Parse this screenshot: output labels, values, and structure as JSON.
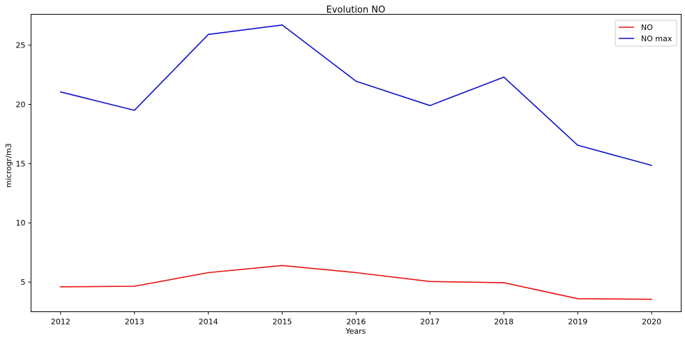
{
  "chart_data": {
    "type": "line",
    "title": "Evolution NO",
    "xlabel": "Years",
    "ylabel": "microgr/m3",
    "categories": [
      "2012",
      "2013",
      "2014",
      "2015",
      "2016",
      "2017",
      "2018",
      "2019",
      "2020"
    ],
    "x": [
      2012,
      2013,
      2014,
      2015,
      2016,
      2017,
      2018,
      2019,
      2020
    ],
    "xlim": [
      2011.6,
      2020.4
    ],
    "ylim": [
      2.5,
      27.6
    ],
    "yticks": [
      5,
      10,
      15,
      20,
      25
    ],
    "series": [
      {
        "name": "NO",
        "color": "#e8120f",
        "values": [
          4.6,
          4.65,
          5.8,
          6.4,
          5.8,
          5.05,
          4.95,
          3.6,
          3.55
        ]
      },
      {
        "name": "NO max",
        "color": "#0c0fcc",
        "values": [
          21.05,
          19.5,
          25.9,
          26.7,
          21.95,
          19.9,
          22.3,
          16.55,
          14.85
        ]
      }
    ],
    "legend": {
      "position": "top-right"
    },
    "grid": false
  }
}
